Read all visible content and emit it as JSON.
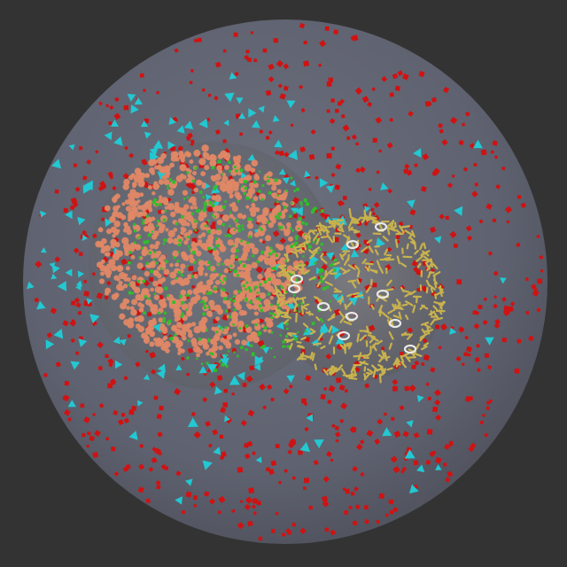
{
  "scene": {
    "background_color": "#333333",
    "outer_sphere_color": "#5f6270",
    "compartments": [
      {
        "name": "cytoplasm",
        "fill": "#6a6d7a"
      },
      {
        "name": "nucleus-like-sphere",
        "fill": "#6b6e7b"
      },
      {
        "name": "membrane-sphere",
        "fill": "#6c6d78"
      }
    ],
    "particle_types": [
      {
        "name": "red-cube",
        "color": "#d01212"
      },
      {
        "name": "cyan-tetrahedron",
        "color": "#22c8d2"
      },
      {
        "name": "salmon-particle",
        "color": "#e08866"
      },
      {
        "name": "green-particle",
        "color": "#2fbf2a"
      },
      {
        "name": "yellow-spike",
        "color": "#c8b24e"
      },
      {
        "name": "white-ring",
        "color": "#e8e8e8"
      }
    ]
  }
}
